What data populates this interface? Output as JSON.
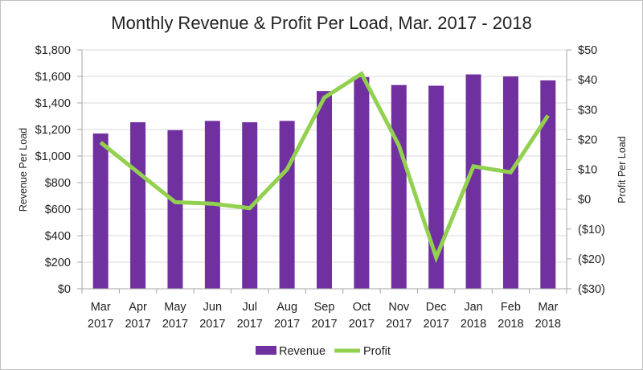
{
  "chart_data": {
    "type": "bar",
    "title": "Monthly Revenue & Profit Per Load, Mar. 2017 - 2018",
    "xlabel": "",
    "ylabel": "Revenue Per Load",
    "y2label": "Profit Per Load",
    "ylim": [
      0,
      1800
    ],
    "y2lim": [
      -30,
      50
    ],
    "y_ticks": [
      "$0",
      "$200",
      "$400",
      "$600",
      "$800",
      "$1,000",
      "$1,200",
      "$1,400",
      "$1,600",
      "$1,800"
    ],
    "y2_ticks": [
      "($30)",
      "($20)",
      "($10)",
      "$0",
      "$10",
      "$20",
      "$30",
      "$40",
      "$50"
    ],
    "categories": [
      [
        "Mar",
        "2017"
      ],
      [
        "Apr",
        "2017"
      ],
      [
        "May",
        "2017"
      ],
      [
        "Jun",
        "2017"
      ],
      [
        "Jul",
        "2017"
      ],
      [
        "Aug",
        "2017"
      ],
      [
        "Sep",
        "2017"
      ],
      [
        "Oct",
        "2017"
      ],
      [
        "Nov",
        "2017"
      ],
      [
        "Dec",
        "2017"
      ],
      [
        "Jan",
        "2018"
      ],
      [
        "Feb",
        "2018"
      ],
      [
        "Mar",
        "2018"
      ]
    ],
    "series": [
      {
        "name": "Revenue",
        "type": "bar",
        "axis": "left",
        "color": "#7030a0",
        "values": [
          1170,
          1255,
          1195,
          1265,
          1255,
          1265,
          1490,
          1595,
          1535,
          1530,
          1615,
          1600,
          1570
        ]
      },
      {
        "name": "Profit",
        "type": "line",
        "axis": "right",
        "color": "#92d050",
        "values": [
          19,
          9,
          -1,
          -1.5,
          -3,
          10,
          34,
          42,
          18,
          -19.5,
          11,
          9,
          28
        ]
      }
    ],
    "grid": true,
    "legend": "bottom"
  }
}
